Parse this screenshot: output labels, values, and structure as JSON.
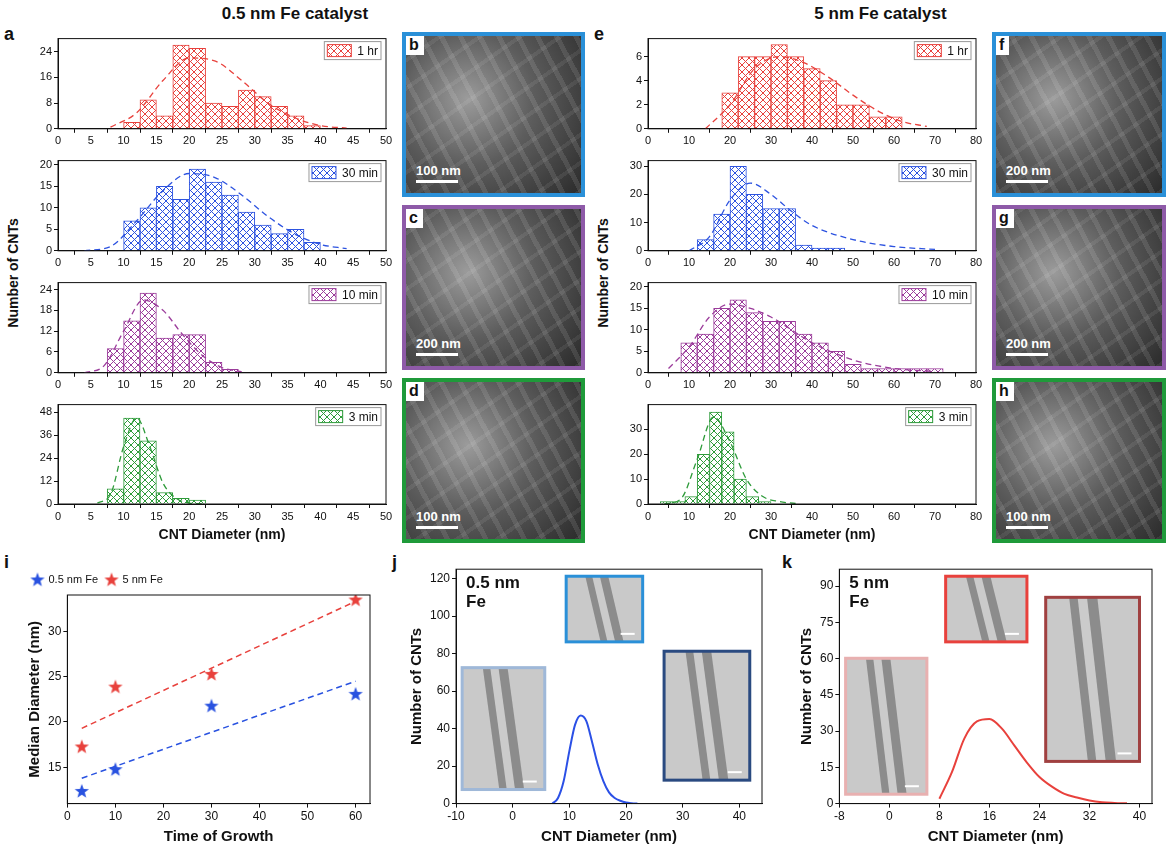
{
  "headers": [
    "0.5 nm Fe catalyst",
    "5 nm Fe catalyst"
  ],
  "chart_data": [
    {
      "type": "histogram",
      "panel": "a",
      "ylabel": "Number of CNTs",
      "name": "1 hr",
      "color": "#e8413c",
      "bins": [
        10,
        12.5,
        15,
        17.5,
        20,
        22.5,
        25,
        27.5,
        30,
        32.5,
        35,
        37.5,
        40
      ],
      "values": [
        2,
        9,
        4,
        26,
        25,
        8,
        7,
        12,
        10,
        7,
        4,
        1
      ],
      "fit": {
        "x": [
          8,
          12,
          16,
          20,
          24,
          28,
          32,
          36,
          40,
          44
        ],
        "values": [
          0.5,
          5,
          15,
          22,
          21,
          15,
          8,
          3.5,
          1,
          0.2
        ],
        "line_style": "dashed"
      },
      "xlim": [
        0,
        50
      ],
      "xticks": [
        0,
        5,
        10,
        15,
        20,
        25,
        30,
        35,
        40,
        45,
        50
      ],
      "ylim": [
        0,
        28
      ],
      "yticks": [
        0,
        8,
        16,
        24
      ],
      "grid": false,
      "legend": "top-right"
    },
    {
      "type": "histogram",
      "name": "30 min",
      "color": "#2d53e0",
      "bins": [
        10,
        12.5,
        15,
        17.5,
        20,
        22.5,
        25,
        27.5,
        30,
        32.5,
        35,
        37.5,
        40
      ],
      "values": [
        7,
        10,
        15,
        12,
        19,
        16,
        13,
        9,
        6,
        4,
        5,
        2
      ],
      "fit": {
        "x": [
          4,
          8,
          12,
          16,
          20,
          24,
          28,
          32,
          36,
          40,
          44
        ],
        "values": [
          0,
          1,
          7,
          14,
          18,
          17,
          13,
          8,
          4,
          1.5,
          0.5
        ],
        "line_style": "dashed"
      },
      "xlim": [
        0,
        50
      ],
      "xticks": [
        0,
        5,
        10,
        15,
        20,
        25,
        30,
        35,
        40,
        45,
        50
      ],
      "ylim": [
        0,
        21
      ],
      "yticks": [
        0,
        5,
        10,
        15,
        20
      ],
      "grid": false,
      "legend": "top-right"
    },
    {
      "type": "histogram",
      "name": "10 min",
      "color": "#9b3c9b",
      "bins": [
        7.5,
        10,
        12.5,
        15,
        17.5,
        20,
        22.5,
        25,
        27.5
      ],
      "values": [
        7,
        15,
        23,
        10,
        11,
        11,
        3,
        1
      ],
      "fit": {
        "x": [
          4,
          7,
          10,
          13,
          16,
          19,
          22,
          25,
          28
        ],
        "values": [
          0,
          2,
          12,
          21,
          18,
          11,
          5,
          1.5,
          0.3
        ],
        "line_style": "dashed"
      },
      "xlim": [
        0,
        50
      ],
      "xticks": [
        0,
        5,
        10,
        15,
        20,
        25,
        30,
        35,
        40,
        45,
        50
      ],
      "ylim": [
        0,
        26
      ],
      "yticks": [
        0,
        6,
        12,
        18,
        24
      ],
      "grid": false,
      "legend": "top-right"
    },
    {
      "type": "histogram",
      "name": "3 min",
      "color": "#2e9b3a",
      "xlabel": "CNT Diameter (nm)",
      "bins": [
        7.5,
        10,
        12.5,
        15,
        17.5,
        20,
        22.5
      ],
      "values": [
        8,
        45,
        33,
        6,
        3,
        2
      ],
      "fit": {
        "x": [
          6,
          8,
          10,
          12,
          14,
          16,
          18,
          20,
          22
        ],
        "values": [
          0.5,
          5,
          30,
          45,
          30,
          11,
          3,
          0.5,
          0.1
        ],
        "line_style": "dashed"
      },
      "xlim": [
        0,
        50
      ],
      "xticks": [
        0,
        5,
        10,
        15,
        20,
        25,
        30,
        35,
        40,
        45,
        50
      ],
      "ylim": [
        0,
        52
      ],
      "yticks": [
        0,
        12,
        24,
        36,
        48
      ],
      "grid": false,
      "legend": "top-right"
    },
    {
      "type": "histogram",
      "panel": "e",
      "ylabel": "Number of CNTs",
      "name": "1 hr",
      "color": "#e8413c",
      "bins": [
        18,
        22,
        26,
        30,
        34,
        38,
        42,
        46,
        50,
        54,
        58,
        62
      ],
      "values": [
        3,
        6,
        6,
        7,
        6,
        5,
        4,
        2,
        2,
        1,
        1
      ],
      "fit": {
        "x": [
          14,
          20,
          26,
          32,
          38,
          44,
          50,
          56,
          62,
          68
        ],
        "values": [
          0,
          2,
          5,
          6,
          5.5,
          4.3,
          2.8,
          1.5,
          0.6,
          0.2
        ],
        "line_style": "dashed"
      },
      "xlim": [
        0,
        80
      ],
      "xticks": [
        0,
        10,
        20,
        30,
        40,
        50,
        60,
        70,
        80
      ],
      "ylim": [
        0,
        7.5
      ],
      "yticks": [
        0,
        2,
        4,
        6
      ],
      "grid": false,
      "legend": "top-right"
    },
    {
      "type": "histogram",
      "name": "30 min",
      "color": "#2d53e0",
      "bins": [
        12,
        16,
        20,
        24,
        28,
        32,
        36,
        40,
        44,
        48
      ],
      "values": [
        4,
        13,
        30,
        20,
        15,
        15,
        2,
        1,
        1
      ],
      "fit": {
        "x": [
          10,
          15,
          20,
          25,
          30,
          35,
          40,
          50,
          60,
          70
        ],
        "values": [
          0,
          5,
          18,
          24,
          20,
          14,
          9,
          4,
          1.5,
          0.5
        ],
        "line_style": "dashed"
      },
      "xlim": [
        0,
        80
      ],
      "xticks": [
        0,
        10,
        20,
        30,
        40,
        50,
        60,
        70,
        80
      ],
      "ylim": [
        0,
        32
      ],
      "yticks": [
        0,
        10,
        20,
        30
      ],
      "grid": false,
      "legend": "top-right"
    },
    {
      "type": "histogram",
      "name": "10 min",
      "color": "#9b3c9b",
      "bins": [
        8,
        12,
        16,
        20,
        24,
        28,
        32,
        36,
        40,
        44,
        48,
        52,
        56,
        60,
        64,
        68,
        72
      ],
      "values": [
        7,
        9,
        15,
        17,
        14,
        12,
        12,
        9,
        7,
        5,
        2,
        1,
        1,
        1,
        1,
        1
      ],
      "fit": {
        "x": [
          5,
          10,
          15,
          20,
          25,
          30,
          35,
          40,
          50,
          60,
          70
        ],
        "values": [
          1,
          6,
          13,
          16,
          15,
          13,
          10,
          7,
          3,
          1,
          0.3
        ],
        "line_style": "dashed"
      },
      "xlim": [
        0,
        80
      ],
      "xticks": [
        0,
        10,
        20,
        30,
        40,
        50,
        60,
        70,
        80
      ],
      "ylim": [
        0,
        21
      ],
      "yticks": [
        0,
        5,
        10,
        15,
        20
      ],
      "grid": false,
      "legend": "top-right"
    },
    {
      "type": "histogram",
      "name": "3 min",
      "color": "#2e9b3a",
      "xlabel": "CNT Diameter (nm)",
      "bins": [
        3,
        6,
        9,
        12,
        15,
        18,
        21,
        24,
        27,
        30
      ],
      "values": [
        1,
        1,
        3,
        20,
        37,
        29,
        10,
        3,
        1
      ],
      "fit": {
        "x": [
          4,
          8,
          12,
          16,
          20,
          24,
          28,
          32,
          36
        ],
        "values": [
          0,
          2,
          18,
          35,
          25,
          10,
          3,
          1,
          0.2
        ],
        "line_style": "dashed"
      },
      "xlim": [
        0,
        80
      ],
      "xticks": [
        0,
        10,
        20,
        30,
        40,
        50,
        60,
        70,
        80
      ],
      "ylim": [
        0,
        40
      ],
      "yticks": [
        0,
        10,
        20,
        30
      ],
      "grid": false,
      "legend": "top-right"
    },
    {
      "type": "scatter",
      "panel": "i",
      "xlabel": "Time of Growth",
      "ylabel": "Median Diameter (nm)",
      "legend": "top-left",
      "grid": false,
      "xlim": [
        0,
        63
      ],
      "xticks": [
        0,
        10,
        20,
        30,
        40,
        50,
        60
      ],
      "ylim": [
        11,
        34
      ],
      "yticks": [
        15,
        20,
        25,
        30
      ],
      "series": [
        {
          "name": "0.5 nm Fe",
          "color": "#2952e0",
          "marker": "star",
          "x": [
            3,
            10,
            30,
            60
          ],
          "values": [
            12.4,
            14.8,
            21.8,
            23.1
          ],
          "fit": {
            "x": [
              3,
              60
            ],
            "values": [
              13.8,
              24.5
            ],
            "line_style": "dashed"
          }
        },
        {
          "name": "5 nm Fe",
          "color": "#e8413c",
          "marker": "star",
          "x": [
            3,
            10,
            30,
            60
          ],
          "values": [
            17.3,
            23.9,
            25.3,
            33.5
          ],
          "fit": {
            "x": [
              3,
              60
            ],
            "values": [
              19.3,
              33.3
            ],
            "line_style": "dashed"
          }
        }
      ]
    },
    {
      "type": "line",
      "panel": "j",
      "title": "0.5 nm Fe",
      "xlabel": "CNT Diameter (nm)",
      "ylabel": "Number of CNTs",
      "grid": false,
      "xlim": [
        -10,
        44
      ],
      "xticks": [
        -10,
        0,
        10,
        20,
        30,
        40
      ],
      "ylim": [
        0,
        125
      ],
      "yticks": [
        0,
        20,
        40,
        60,
        80,
        100,
        120
      ],
      "series": [
        {
          "color": "#2b50e6",
          "x": [
            7,
            8,
            9,
            10,
            11,
            12,
            13,
            14,
            15,
            16,
            17,
            18,
            19,
            20,
            21,
            22
          ],
          "values": [
            0,
            3,
            12,
            28,
            42,
            47,
            44,
            33,
            21,
            12,
            6,
            3,
            1.5,
            0.6,
            0.2,
            0
          ]
        }
      ]
    },
    {
      "type": "line",
      "panel": "k",
      "title": "5 nm Fe",
      "xlabel": "CNT Diameter (nm)",
      "ylabel": "Number of CNTs",
      "grid": false,
      "xlim": [
        -8,
        42
      ],
      "xticks": [
        -8,
        0,
        8,
        16,
        24,
        32,
        40
      ],
      "ylim": [
        0,
        97
      ],
      "yticks": [
        0,
        15,
        30,
        45,
        60,
        75,
        90
      ],
      "series": [
        {
          "color": "#e8413c",
          "x": [
            8,
            10,
            12,
            14,
            16,
            18,
            20,
            22,
            24,
            26,
            28,
            30,
            32,
            34,
            36,
            38
          ],
          "values": [
            2,
            13,
            27,
            34,
            35,
            31,
            24,
            17,
            11,
            7,
            4,
            2.5,
            1.3,
            0.6,
            0.3,
            0.1
          ]
        }
      ]
    }
  ],
  "images": [
    {
      "panel": "b",
      "scale_bar": "100 nm",
      "color": "#2a90d8"
    },
    {
      "panel": "c",
      "scale_bar": "200 nm",
      "color": "#8e5aa8"
    },
    {
      "panel": "d",
      "scale_bar": "100 nm",
      "color": "#1f9a3a"
    },
    {
      "panel": "f",
      "scale_bar": "200 nm",
      "color": "#2a90d8"
    },
    {
      "panel": "g",
      "scale_bar": "200 nm",
      "color": "#8e5aa8"
    },
    {
      "panel": "h",
      "scale_bar": "100 nm",
      "color": "#1f9a3a"
    }
  ]
}
